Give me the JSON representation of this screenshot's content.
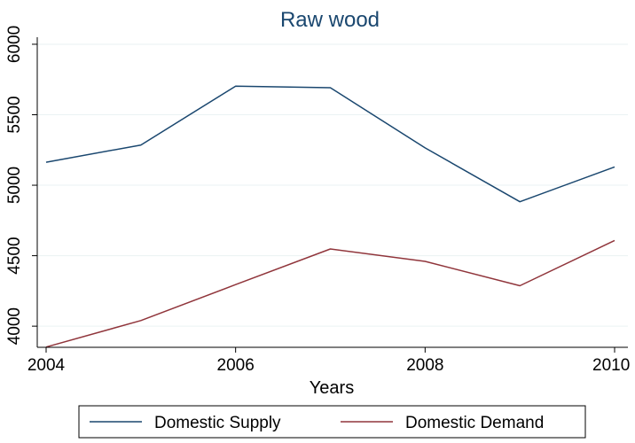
{
  "chart_data": {
    "type": "line",
    "title": "Raw wood",
    "xlabel": "Years",
    "ylabel": "",
    "x": [
      2004,
      2005,
      2006,
      2007,
      2008,
      2009,
      2010
    ],
    "xlim": [
      2004,
      2010
    ],
    "ylim": [
      3850,
      6050
    ],
    "xticks": [
      "2004",
      "2006",
      "2008",
      "2010"
    ],
    "yticks": [
      "4000",
      "4500",
      "5000",
      "5500",
      "6000"
    ],
    "grid": true,
    "legend_position": "bottom",
    "series": [
      {
        "name": "Domestic Supply",
        "color": "#1a476f",
        "values": [
          5163,
          5285,
          5703,
          5692,
          5265,
          4883,
          5130
        ]
      },
      {
        "name": "Domestic Demand",
        "color": "#90353b",
        "values": [
          3852,
          4040,
          4295,
          4548,
          4460,
          4287,
          4608
        ]
      }
    ],
    "colors": {
      "title": "#1a476f",
      "grid": "#eaf2f3",
      "axis": "#000000"
    }
  }
}
